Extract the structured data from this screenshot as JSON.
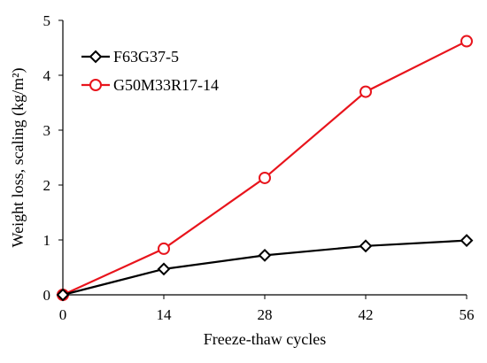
{
  "chart_data": {
    "type": "line",
    "xlabel": "Freeze-thaw cycles",
    "ylabel": "Weight loss, scaling (kg/m²)",
    "x": [
      0,
      14,
      28,
      42,
      56
    ],
    "xlim": [
      0,
      56
    ],
    "ylim": [
      0,
      5
    ],
    "xticks": [
      "0",
      "14",
      "28",
      "42",
      "56"
    ],
    "yticks": [
      "0",
      "1",
      "2",
      "3",
      "4",
      "5"
    ],
    "grid": false,
    "legend_position": "top-left",
    "series": [
      {
        "name": "F63G37-5",
        "values": [
          0,
          0.47,
          0.72,
          0.89,
          0.99
        ],
        "color": "#000000",
        "marker": "diamond"
      },
      {
        "name": "G50M33R17-14",
        "values": [
          0,
          0.84,
          2.13,
          3.7,
          4.62
        ],
        "color": "#e8141c",
        "marker": "circle"
      }
    ]
  }
}
